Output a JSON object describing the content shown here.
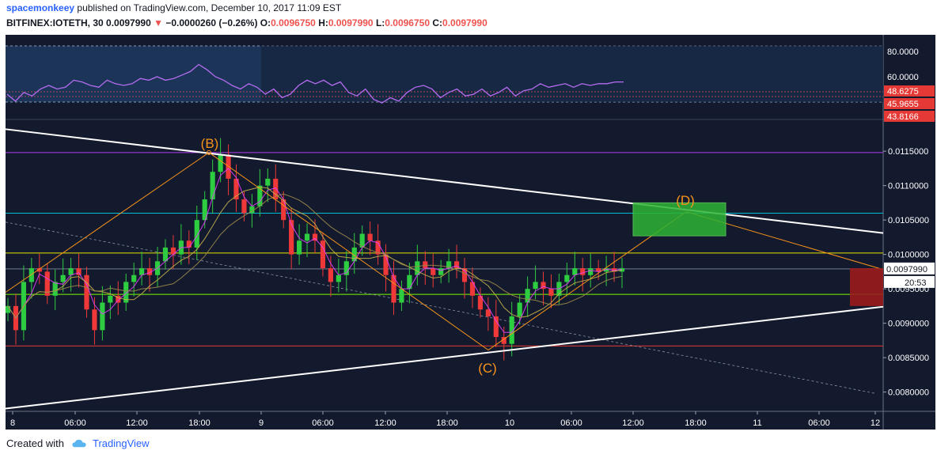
{
  "header": {
    "user": "spacemonkeey",
    "published": "published on TradingView.com, December 10, 2017 11:09 EST",
    "symbol": "BITFINEX:IOTETH, 30",
    "last": "0.0097990",
    "arrow": "▼",
    "change": "−0.0000260 (−0.26%)",
    "o_label": "O:",
    "o": "0.0096750",
    "h_label": "H:",
    "h": "0.0097990",
    "l_label": "L:",
    "l": "0.0096750",
    "c_label": "C:",
    "c": "0.0097990"
  },
  "footer": {
    "created_with": "Created with",
    "brand": "TradingView"
  },
  "colors": {
    "up": "#26a69a",
    "up_candle": "#2ecc40",
    "down": "#ef3838",
    "pattern": "#f7931a",
    "trendline": "#ffffff",
    "purple_line": "#b03cf0",
    "cyan_line": "#00bcd4",
    "yellow_line": "#e6e600",
    "green_line": "#7cfc00",
    "red_line": "#e53935",
    "rsi": "#b56cf0",
    "bg": "#131a2e",
    "rsi_band": "#1d3a5e"
  },
  "chart_data": [
    {
      "type": "line",
      "title": "RSI",
      "y_ticks": [
        "80.0000",
        "60.0000",
        "48.6275",
        "45.9655",
        "43.8166"
      ],
      "ylim": [
        38,
        86
      ],
      "band": [
        30,
        70
      ],
      "values": [
        52,
        48,
        53,
        51,
        55,
        57,
        55,
        56,
        60,
        59,
        57,
        56,
        60,
        58,
        57,
        58,
        61,
        60,
        62,
        60,
        61,
        63,
        65,
        69,
        66,
        62,
        60,
        57,
        55,
        58,
        56,
        52,
        55,
        50,
        52,
        57,
        60,
        58,
        60,
        57,
        59,
        53,
        51,
        55,
        49,
        47,
        50,
        48,
        53,
        56,
        57,
        55,
        50,
        53,
        55,
        51,
        52,
        55,
        51,
        53,
        56,
        51,
        54,
        55,
        58,
        56,
        57,
        58,
        56,
        58,
        57,
        58,
        58,
        59,
        59
      ]
    },
    {
      "type": "candlestick",
      "x_ticks": [
        "8",
        "06:00",
        "12:00",
        "18:00",
        "9",
        "06:00",
        "12:00",
        "18:00",
        "10",
        "06:00",
        "12:00",
        "18:00",
        "11",
        "06:00",
        "12"
      ],
      "y_ticks": [
        "0.0115000",
        "0.0110000",
        "0.0105000",
        "0.0100000",
        "0.0095000",
        "0.0090000",
        "0.0085000",
        "0.0080000"
      ],
      "ylim": [
        0.00772,
        0.01195
      ],
      "last_price": "0.0097990",
      "countdown": "20:53",
      "closes": [
        0.00925,
        0.0089,
        0.0096,
        0.0098,
        0.00975,
        0.0094,
        0.0096,
        0.0097,
        0.0098,
        0.0097,
        0.0092,
        0.0089,
        0.0093,
        0.0094,
        0.0093,
        0.0096,
        0.0097,
        0.0098,
        0.0097,
        0.0099,
        0.0101,
        0.01,
        0.0102,
        0.0101,
        0.0105,
        0.0108,
        0.0112,
        0.01145,
        0.0111,
        0.0108,
        0.0106,
        0.0107,
        0.011,
        0.0111,
        0.0108,
        0.0105,
        0.01,
        0.0102,
        0.0103,
        0.0102,
        0.0098,
        0.0096,
        0.0097,
        0.0099,
        0.0101,
        0.0103,
        0.0102,
        0.01,
        0.0097,
        0.0093,
        0.0095,
        0.0097,
        0.0099,
        0.0098,
        0.0097,
        0.0098,
        0.0099,
        0.0098,
        0.0096,
        0.0094,
        0.0092,
        0.0091,
        0.0088,
        0.0087,
        0.0091,
        0.0093,
        0.0095,
        0.0096,
        0.0095,
        0.0094,
        0.0096,
        0.0097,
        0.0098,
        0.0097,
        0.0098,
        0.00975,
        0.0098,
        0.00975,
        0.0098
      ],
      "levels": [
        0.01148,
        0.0106,
        0.01002,
        0.00942,
        0.00867
      ],
      "pattern_labels": [
        "(B)",
        "(C)",
        "(D)"
      ]
    }
  ]
}
